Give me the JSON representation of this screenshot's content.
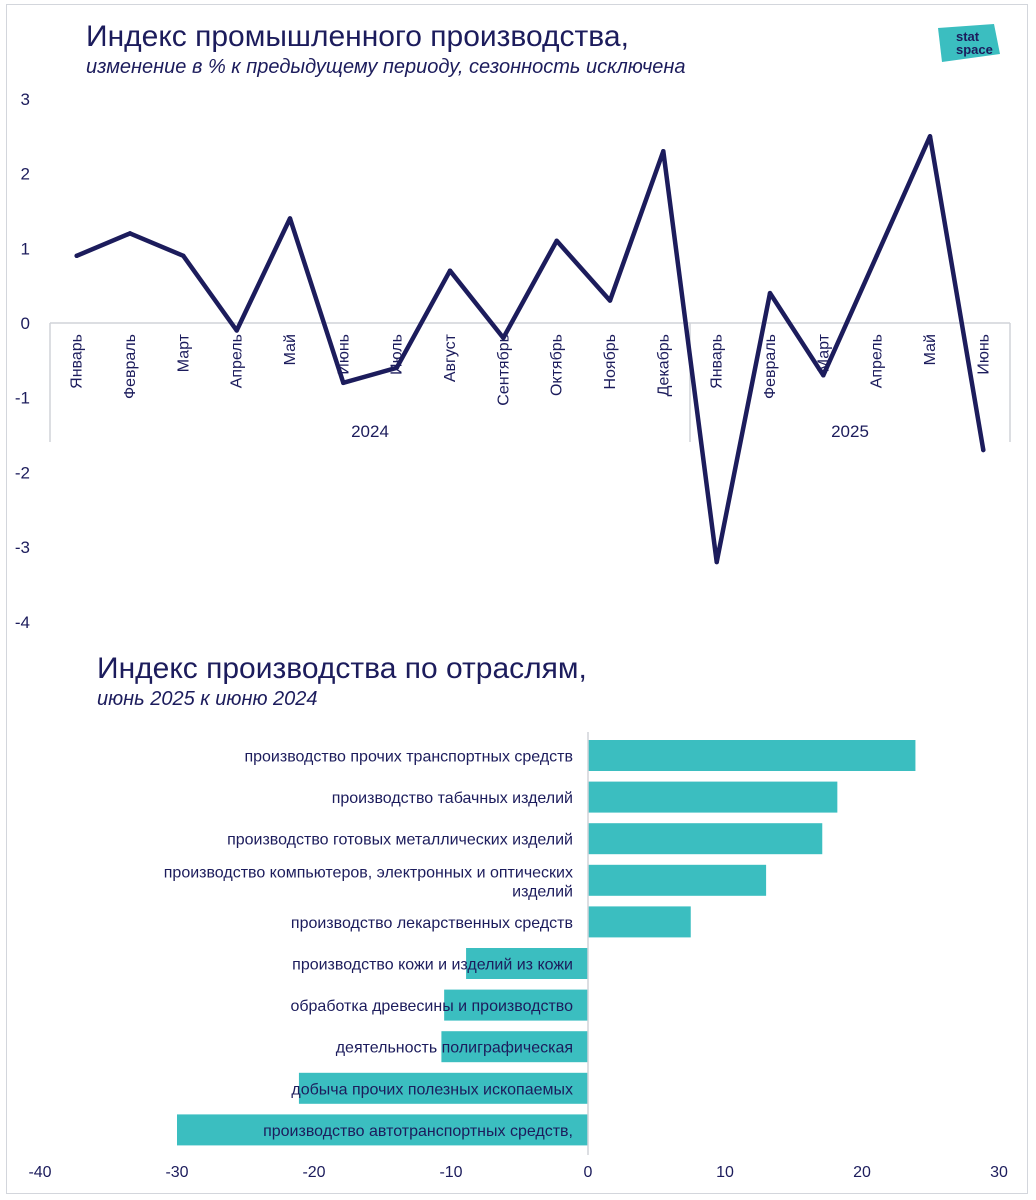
{
  "logo": {
    "line1": "stat",
    "line2": "space",
    "bg_color": "#3bbec0",
    "text_color": "#1c1c5c"
  },
  "colors": {
    "line": "#1c1c5c",
    "bar": "#3bbec0",
    "text": "#1c1c5c",
    "axis": "#d0d3d9"
  },
  "chart_data": [
    {
      "type": "line",
      "title": "Индекс промышленного производства,",
      "subtitle": "изменение в % к предыдущему периоду, сезонность исключена",
      "groups": [
        {
          "label": "2024",
          "months": [
            "Январь",
            "Февраль",
            "Март",
            "Апрель",
            "Май",
            "Июнь",
            "Июль",
            "Август",
            "Сентябрь",
            "Октябрь",
            "Ноябрь",
            "Декабрь"
          ]
        },
        {
          "label": "2025",
          "months": [
            "Январь",
            "Февраль",
            "Март",
            "Апрель",
            "Май",
            "Июнь"
          ]
        }
      ],
      "series": [
        {
          "name": "Индекс промышленного производства",
          "values": [
            0.9,
            1.2,
            0.9,
            -0.1,
            1.4,
            -0.8,
            -0.6,
            0.7,
            -0.2,
            1.1,
            0.3,
            2.3,
            -3.2,
            0.4,
            -0.7,
            0.9,
            2.5,
            -1.7
          ]
        }
      ],
      "ylim": [
        -4,
        3
      ],
      "yticks": [
        3,
        2,
        1,
        0,
        -1,
        -2,
        -3,
        -4
      ],
      "grid": false,
      "legend": "none"
    },
    {
      "type": "bar",
      "orientation": "horizontal",
      "title": "Индекс производства по отраслям,",
      "subtitle": "июнь 2025 к июню 2024",
      "categories": [
        "производство прочих транспортных средств",
        "производство табачных изделий",
        "производство готовых металлических изделий",
        "производство компьютеров, электронных и оптических изделий",
        "производство лекарственных средств",
        "производство кожи и изделий из кожи",
        "обработка древесины и производство",
        "деятельность полиграфическая",
        "добыча прочих полезных ископаемых",
        "производство автотранспортных средств,"
      ],
      "values": [
        23.9,
        18.2,
        17.1,
        13.0,
        7.5,
        -8.9,
        -10.5,
        -10.7,
        -21.1,
        -30.0
      ],
      "xlim": [
        -40,
        30
      ],
      "xticks": [
        -40,
        -30,
        -20,
        -10,
        0,
        10,
        20,
        30
      ],
      "grid": false,
      "legend": "none"
    }
  ]
}
